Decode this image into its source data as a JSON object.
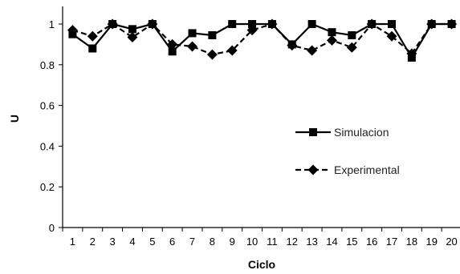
{
  "chart_data": {
    "type": "line",
    "xlabel": "Ciclo",
    "ylabel": "U",
    "ylim": [
      0,
      1
    ],
    "yticks": [
      "0",
      "0.2",
      "0.4",
      "0.6",
      "0.8",
      "1"
    ],
    "categories": [
      "1",
      "2",
      "3",
      "4",
      "5",
      "6",
      "7",
      "8",
      "9",
      "10",
      "11",
      "12",
      "13",
      "14",
      "15",
      "16",
      "17",
      "18",
      "19",
      "20"
    ],
    "grid": false,
    "legend_position": "right",
    "series": [
      {
        "name": "Simulacion",
        "style": "solid",
        "marker": "square",
        "color": "#000000",
        "values": [
          0.95,
          0.88,
          1.0,
          0.975,
          1.0,
          0.865,
          0.955,
          0.945,
          1.0,
          1.0,
          1.0,
          0.9,
          1.0,
          0.96,
          0.945,
          1.0,
          1.0,
          0.835,
          1.0,
          1.0
        ]
      },
      {
        "name": "Experimental",
        "style": "dashed",
        "marker": "diamond",
        "color": "#000000",
        "values": [
          0.97,
          0.94,
          1.0,
          0.935,
          1.0,
          0.9,
          0.89,
          0.85,
          0.87,
          0.97,
          1.0,
          0.895,
          0.87,
          0.92,
          0.885,
          1.0,
          0.94,
          0.855,
          1.0,
          1.0
        ]
      }
    ]
  }
}
